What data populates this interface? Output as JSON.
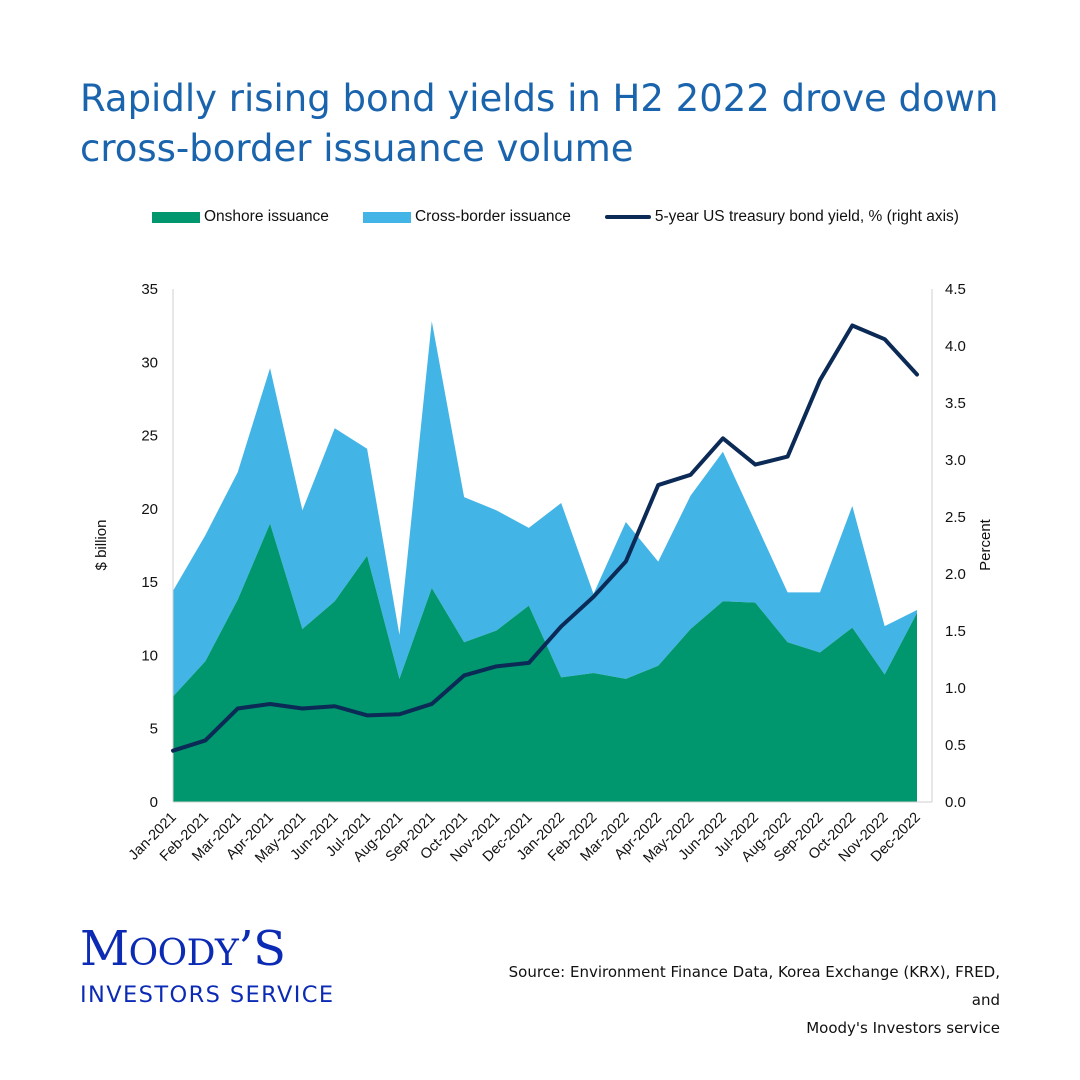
{
  "title": "Rapidly rising bond yields in H2 2022 drove down cross-border issuance volume",
  "legend": {
    "onshore": "Onshore issuance",
    "crossborder": "Cross-border issuance",
    "yield": "5-year US treasury bond yield, % (right axis)"
  },
  "colors": {
    "title": "#1a64ad",
    "onshore": "#00976e",
    "crossborder": "#43b4e6",
    "yield": "#0b2a56",
    "logo": "#0c2bb5"
  },
  "chart_data": {
    "type": "area",
    "x": [
      "Jan-2021",
      "Feb-2021",
      "Mar-2021",
      "Apr-2021",
      "May-2021",
      "Jun-2021",
      "Jul-2021",
      "Aug-2021",
      "Sep-2021",
      "Oct-2021",
      "Nov-2021",
      "Dec-2021",
      "Jan-2022",
      "Feb-2022",
      "Mar-2022",
      "Apr-2022",
      "May-2022",
      "Jun-2022",
      "Jul-2022",
      "Aug-2022",
      "Sep-2022",
      "Oct-2022",
      "Nov-2022",
      "Dec-2022"
    ],
    "series": [
      {
        "name": "Onshore issuance",
        "type": "area",
        "axis": "left",
        "values": [
          7.2,
          9.6,
          13.8,
          19.0,
          11.8,
          13.7,
          16.8,
          8.4,
          14.6,
          10.9,
          11.7,
          13.4,
          8.5,
          8.8,
          8.4,
          9.3,
          11.8,
          13.7,
          13.6,
          10.9,
          10.2,
          11.9,
          8.7,
          12.9
        ]
      },
      {
        "name": "Cross-border issuance",
        "type": "area",
        "axis": "left",
        "stacked_on": "Onshore issuance",
        "values": [
          7.2,
          8.6,
          8.7,
          10.6,
          8.1,
          11.8,
          7.3,
          3.0,
          18.2,
          9.9,
          8.2,
          5.3,
          11.9,
          5.4,
          10.7,
          7.1,
          9.1,
          10.2,
          5.5,
          3.4,
          4.1,
          8.3,
          3.3,
          0.2
        ]
      },
      {
        "name": "5-year US treasury bond yield, % (right axis)",
        "type": "line",
        "axis": "right",
        "values": [
          0.45,
          0.54,
          0.82,
          0.86,
          0.82,
          0.84,
          0.76,
          0.77,
          0.86,
          1.11,
          1.19,
          1.22,
          1.54,
          1.8,
          2.11,
          2.78,
          2.87,
          3.19,
          2.96,
          3.03,
          3.7,
          4.18,
          4.06,
          3.75
        ]
      }
    ],
    "y_left": {
      "label": "$ billion",
      "min": 0,
      "max": 35,
      "ticks": [
        "0",
        "5",
        "10",
        "15",
        "20",
        "25",
        "30",
        "35"
      ]
    },
    "y_right": {
      "label": "Percent",
      "min": 0,
      "max": 4.5,
      "ticks": [
        "0.0",
        "0.5",
        "1.0",
        "1.5",
        "2.0",
        "2.5",
        "3.0",
        "3.5",
        "4.0",
        "4.5"
      ]
    },
    "grid": false,
    "legend_position": "top"
  },
  "logo": {
    "main_cap1": "M",
    "main_rest1": "OODY",
    "main_tail": "’S",
    "sub": "INVESTORS SERVICE"
  },
  "source": {
    "line1": "Source: Environment Finance Data, Korea Exchange (KRX), FRED, and",
    "line2": "Moody's Investors service"
  }
}
